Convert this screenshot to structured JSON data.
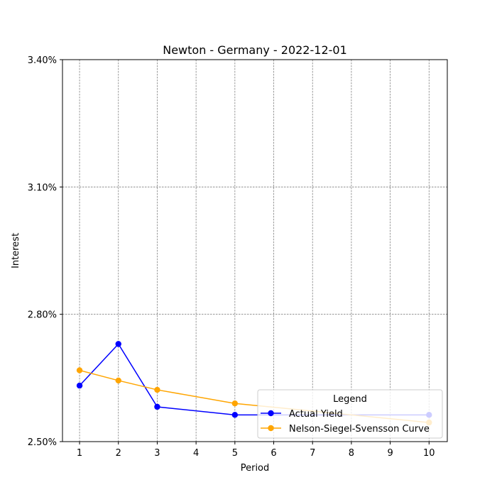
{
  "chart_data": {
    "type": "line",
    "title": "Newton - Germany - 2022-12-01",
    "xlabel": "Period",
    "ylabel": "Interest",
    "x_ticks": [
      "1",
      "2",
      "3",
      "4",
      "5",
      "6",
      "7",
      "8",
      "9",
      "10"
    ],
    "y_ticks": [
      "2.50%",
      "2.80%",
      "3.10%",
      "3.40%"
    ],
    "xlim": [
      0.56,
      10.47
    ],
    "ylim": [
      2.5,
      3.4
    ],
    "grid": true,
    "legend": {
      "title": "Legend",
      "position": "lower-right"
    },
    "series": [
      {
        "name": "Actual Yield",
        "color": "#0000ff",
        "marker": "circle",
        "x": [
          1,
          2,
          3,
          5,
          10
        ],
        "y": [
          2.632,
          2.73,
          2.582,
          2.563,
          2.563
        ]
      },
      {
        "name": "Nelson-Siegel-Svensson Curve",
        "color": "#ffa500",
        "marker": "circle",
        "x": [
          1,
          2,
          3,
          5,
          10
        ],
        "y": [
          2.668,
          2.644,
          2.622,
          2.59,
          2.545
        ]
      }
    ]
  }
}
